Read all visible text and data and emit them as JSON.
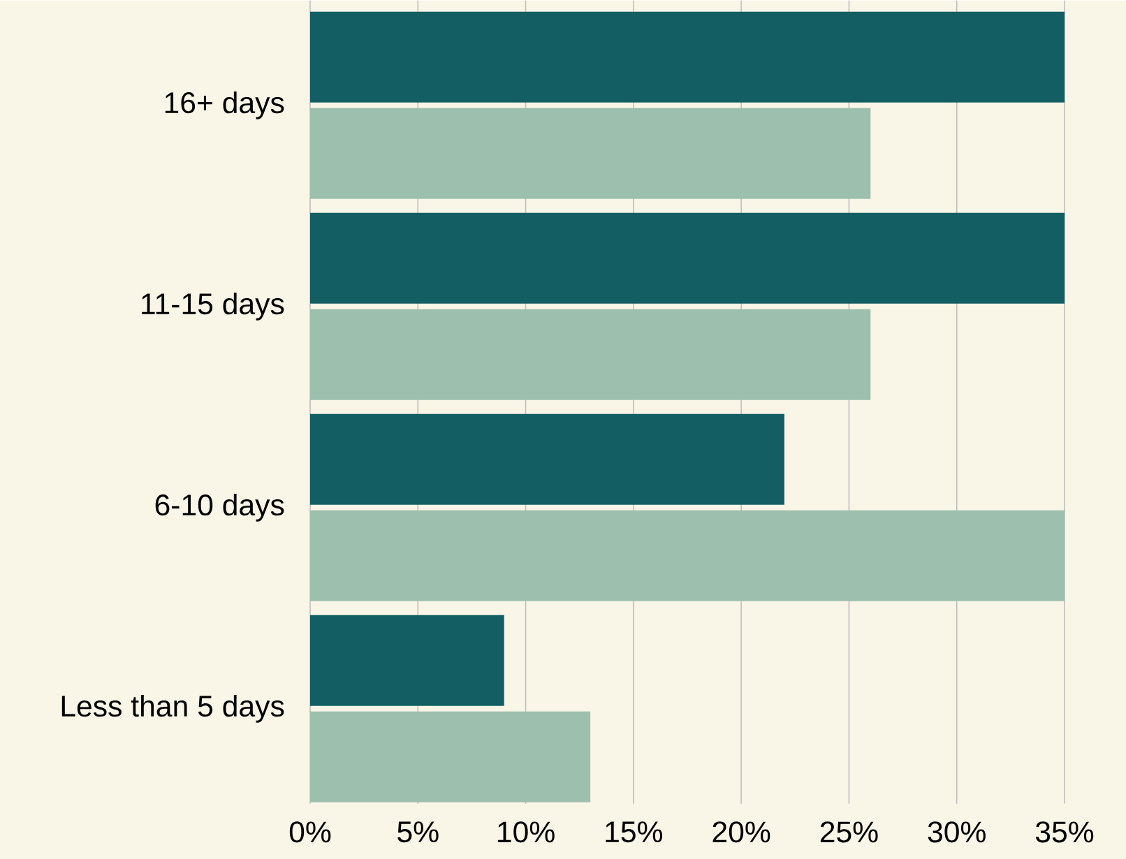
{
  "chart_data": {
    "type": "bar",
    "orientation": "horizontal",
    "categories": [
      "16+ days",
      "11-15 days",
      "6-10 days",
      "Less than 5 days"
    ],
    "series": [
      {
        "color": "#125e63",
        "values": [
          35,
          35,
          22,
          9
        ]
      },
      {
        "color": "#9dbfad",
        "values": [
          26,
          26,
          35,
          13
        ]
      }
    ],
    "xlim": [
      0,
      35
    ],
    "xticks": [
      {
        "value": 0,
        "label": "0%"
      },
      {
        "value": 5,
        "label": "5%"
      },
      {
        "value": 10,
        "label": "10%"
      },
      {
        "value": 15,
        "label": "15%"
      },
      {
        "value": 20,
        "label": "20%"
      },
      {
        "value": 25,
        "label": "25%"
      },
      {
        "value": 30,
        "label": "30%"
      },
      {
        "value": 35,
        "label": "35%"
      }
    ],
    "grid": "x"
  }
}
